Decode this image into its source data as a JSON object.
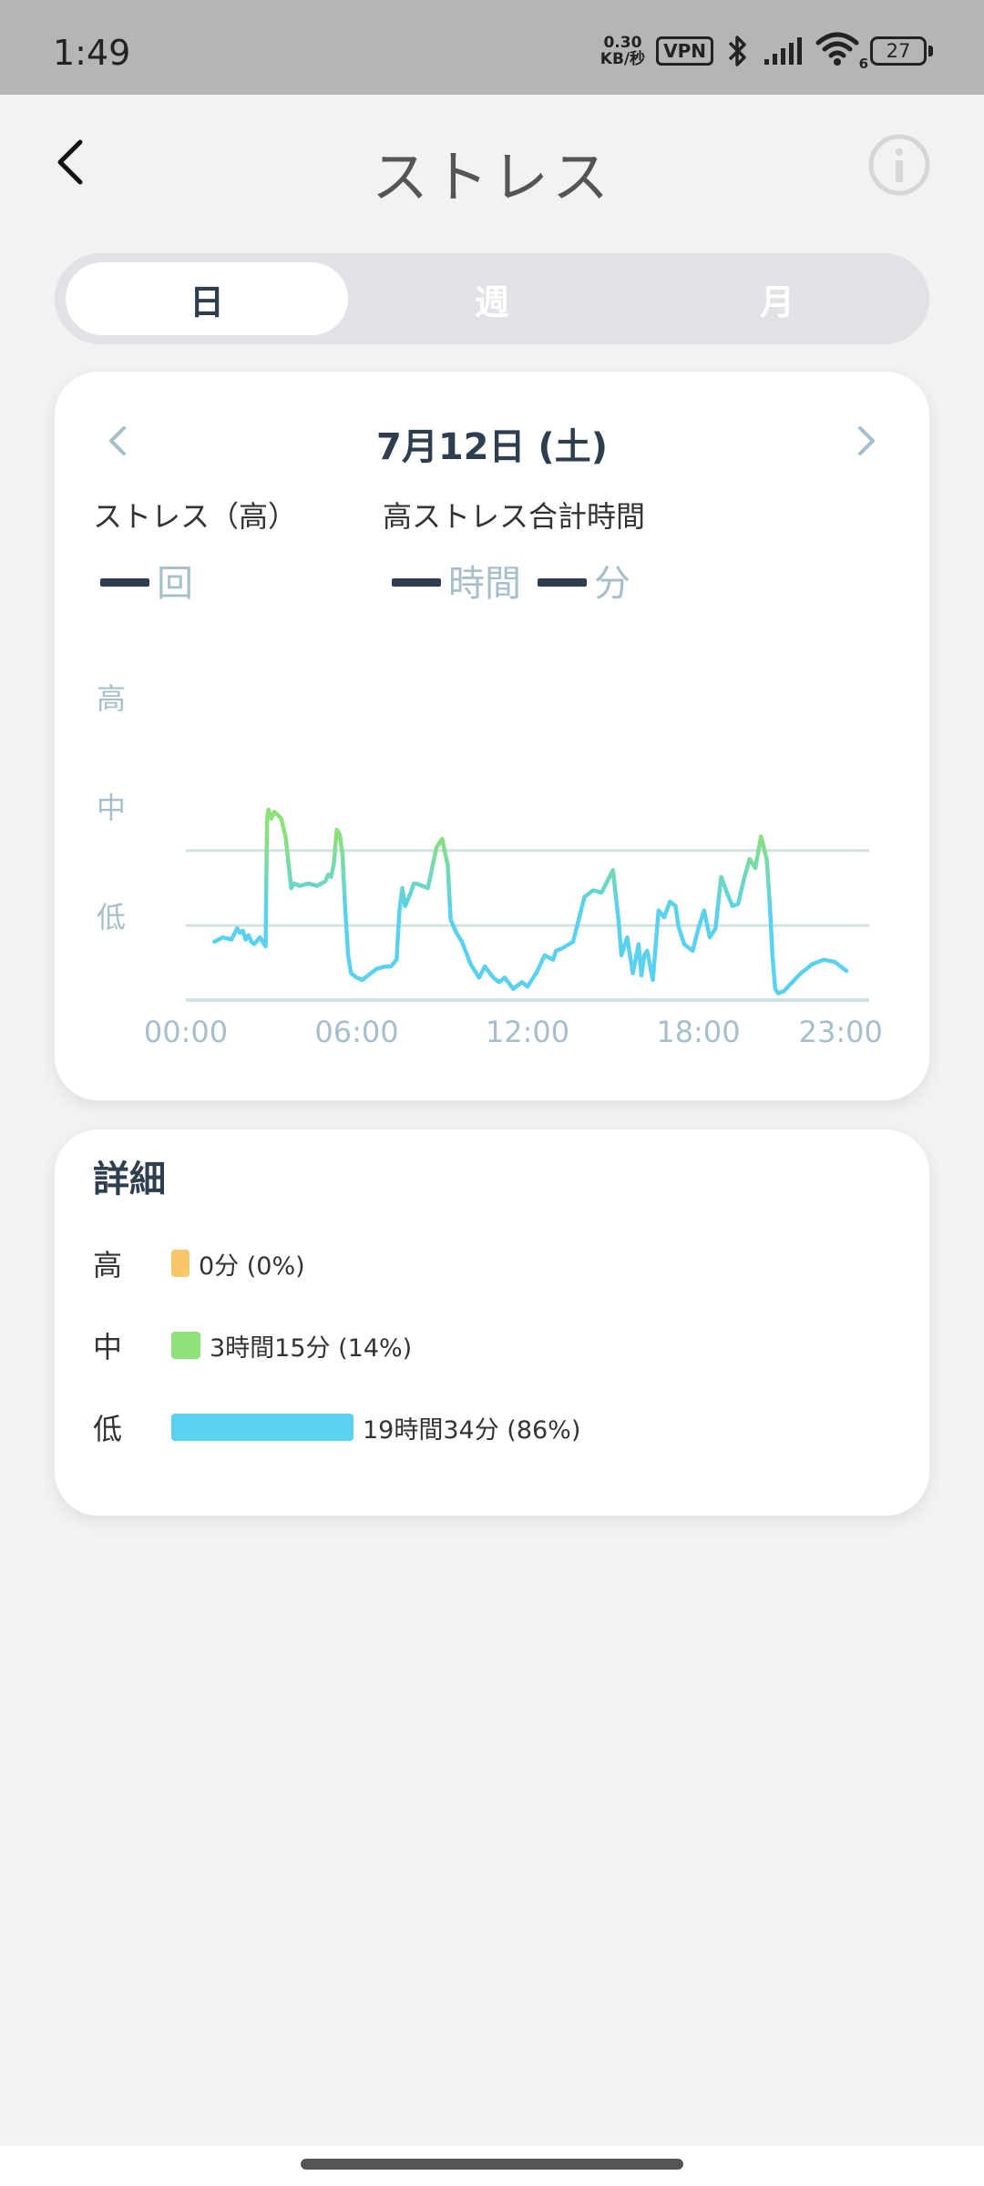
{
  "status_bar": {
    "time": "1:49",
    "net_speed_value": "0.30",
    "net_speed_unit": "KB/秒",
    "vpn": "VPN",
    "wifi_sub": "6",
    "battery": "27"
  },
  "header": {
    "title": "ストレス",
    "back_icon": "chevron-left-icon",
    "info_icon": "info-icon"
  },
  "tabs": [
    {
      "label": "日",
      "active": true
    },
    {
      "label": "週",
      "active": false
    },
    {
      "label": "月",
      "active": false
    }
  ],
  "summary": {
    "date": "7月12日 (土)",
    "high_count_label": "ストレス（高）",
    "high_count_unit": "回",
    "total_time_label": "高ストレス合計時間",
    "hours_unit": "時間",
    "minutes_unit": "分"
  },
  "chart_data": {
    "type": "line",
    "y_categories": [
      "高",
      "中",
      "低"
    ],
    "x_ticks": [
      "00:00",
      "06:00",
      "12:00",
      "18:00",
      "23:00"
    ],
    "xlim": [
      0,
      24
    ],
    "ylim": [
      0,
      100
    ],
    "grid": true,
    "colors": {
      "low": "#5ad1ee",
      "mid": "#8ee07a",
      "axis": "#d0e2e2",
      "label": "#a6bfcb"
    },
    "x": [
      1,
      1.3,
      1.6,
      1.8,
      1.9,
      2.0,
      2.1,
      2.2,
      2.3,
      2.4,
      2.6,
      2.75,
      2.8,
      2.85,
      2.9,
      3.0,
      3.1,
      3.2,
      3.35,
      3.5,
      3.7,
      3.8,
      4.0,
      4.3,
      4.6,
      4.9,
      5.0,
      5.1,
      5.2,
      5.3,
      5.4,
      5.5,
      5.6,
      5.7,
      5.8,
      6.0,
      6.2,
      6.4,
      6.7,
      7.0,
      7.2,
      7.4,
      7.5,
      7.6,
      7.7,
      7.9,
      8.0,
      8.1,
      8.3,
      8.5,
      8.8,
      9.0,
      9.2,
      9.3,
      9.5,
      9.7,
      10.0,
      10.3,
      10.5,
      10.8,
      11.0,
      11.2,
      11.5,
      11.8,
      12.0,
      12.3,
      12.6,
      12.9,
      13.0,
      13.2,
      13.6,
      14.0,
      14.3,
      14.6,
      15.0,
      15.2,
      15.3,
      15.5,
      15.7,
      15.9,
      16.0,
      16.1,
      16.2,
      16.4,
      16.6,
      16.8,
      17.0,
      17.2,
      17.3,
      17.5,
      17.8,
      18.0,
      18.2,
      18.4,
      18.6,
      18.8,
      19.0,
      19.2,
      19.4,
      19.6,
      19.8,
      20.0,
      20.2,
      20.4,
      20.5,
      20.6,
      20.7,
      20.8,
      21.0,
      21.3,
      21.6,
      22.0,
      22.4,
      22.8,
      23.0,
      23.2
    ],
    "y": [
      26,
      28,
      27,
      32,
      30,
      31,
      27,
      29,
      26,
      25,
      28,
      25,
      24,
      80,
      85,
      81,
      84,
      83,
      81,
      73,
      50,
      52,
      51,
      52,
      51,
      53,
      56,
      55,
      61,
      76,
      74,
      65,
      40,
      20,
      12,
      10,
      9,
      11,
      14,
      15,
      15,
      18,
      40,
      50,
      42,
      48,
      52,
      52,
      51,
      50,
      68,
      72,
      60,
      36,
      30,
      26,
      16,
      10,
      15,
      10,
      8,
      10,
      5,
      8,
      6,
      12,
      20,
      18,
      22,
      23,
      26,
      46,
      49,
      48,
      58,
      35,
      20,
      28,
      12,
      25,
      11,
      20,
      22,
      9,
      40,
      37,
      44,
      42,
      33,
      25,
      22,
      32,
      40,
      28,
      32,
      55,
      48,
      42,
      43,
      54,
      63,
      59,
      73,
      63,
      45,
      20,
      5,
      3,
      4,
      8,
      12,
      16,
      18,
      17,
      15,
      13
    ]
  },
  "details": {
    "title": "詳細",
    "rows": [
      {
        "level": "高",
        "text": "0分 (0%)",
        "fraction": 0.0,
        "color": "#f8c76a"
      },
      {
        "level": "中",
        "text": "3時間15分 (14%)",
        "fraction": 0.14,
        "color": "#8ee07a"
      },
      {
        "level": "低",
        "text": "19時間34分 (86%)",
        "fraction": 0.86,
        "color": "#5ad1ee"
      }
    ]
  }
}
